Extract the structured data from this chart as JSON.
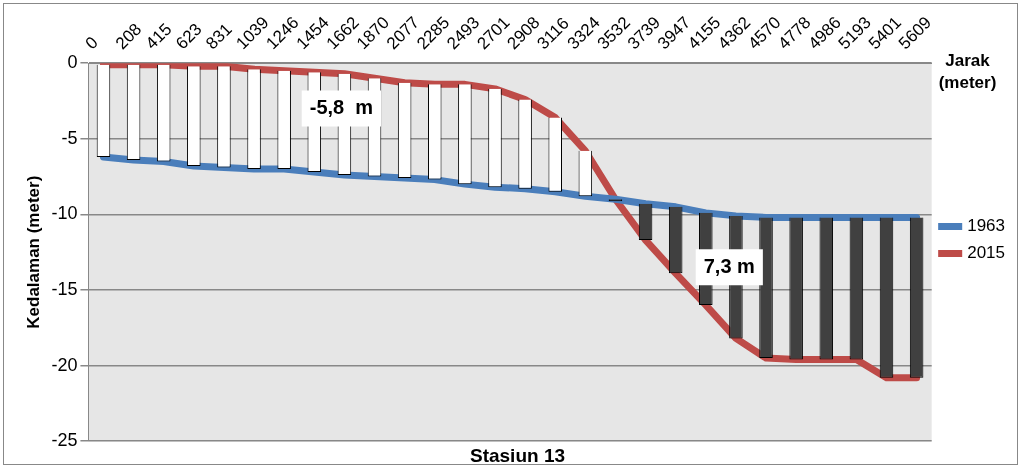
{
  "chart_data": {
    "type": "line",
    "title": "Stasiun 13",
    "xlabel": "Jarak (meter)",
    "ylabel": "Kedalaman (meter)",
    "categories": [
      "0",
      "208",
      "415",
      "623",
      "831",
      "1039",
      "1246",
      "1454",
      "1662",
      "1870",
      "2077",
      "2285",
      "2493",
      "2701",
      "2908",
      "3116",
      "3324",
      "3532",
      "3739",
      "3947",
      "4155",
      "4362",
      "4570",
      "4778",
      "4986",
      "5193",
      "5401",
      "5609"
    ],
    "series": [
      {
        "type": "bar",
        "base": [
          -6.2,
          -6.4,
          -6.5,
          -6.8,
          -6.9,
          -7.0,
          -7.0,
          -7.2,
          -7.4,
          -7.5,
          -7.6,
          -7.7,
          -8.0,
          -8.2,
          -8.3,
          -8.5,
          -8.8,
          -9.0,
          -9.3,
          -9.5,
          -9.9,
          -10.1,
          -10.2,
          -10.2,
          -10.2,
          -10.2,
          -10.2,
          -10.2
        ],
        "values": [
          6.1,
          6.3,
          6.4,
          6.6,
          6.7,
          6.6,
          6.5,
          6.6,
          6.7,
          6.5,
          6.3,
          6.3,
          6.6,
          6.5,
          5.9,
          4.9,
          3.0,
          0,
          -2.4,
          -4.4,
          -6.1,
          -8.1,
          -9.3,
          -9.4,
          -9.4,
          -9.4,
          -10.6,
          -10.6
        ],
        "colors": [
          "#ffffff",
          "#ffffff",
          "#ffffff",
          "#ffffff",
          "#ffffff",
          "#ffffff",
          "#ffffff",
          "#ffffff",
          "#ffffff",
          "#ffffff",
          "#ffffff",
          "#ffffff",
          "#ffffff",
          "#ffffff",
          "#ffffff",
          "#ffffff",
          "#ffffff",
          "#404040",
          "#404040",
          "#404040",
          "#404040",
          "#404040",
          "#404040",
          "#404040",
          "#404040",
          "#404040",
          "#404040",
          "#404040"
        ]
      },
      {
        "name": "1963",
        "color": "#4a7ebb",
        "values": [
          -6.2,
          -6.4,
          -6.5,
          -6.8,
          -6.9,
          -7.0,
          -7.0,
          -7.2,
          -7.4,
          -7.5,
          -7.6,
          -7.7,
          -8.0,
          -8.2,
          -8.3,
          -8.5,
          -8.8,
          -9.0,
          -9.3,
          -9.5,
          -9.9,
          -10.1,
          -10.2,
          -10.2,
          -10.2,
          -10.2,
          -10.2,
          -10.2
        ]
      },
      {
        "name": "2015",
        "color": "#be4b48",
        "values": [
          -0.1,
          -0.1,
          -0.1,
          -0.2,
          -0.2,
          -0.4,
          -0.5,
          -0.6,
          -0.7,
          -1.0,
          -1.3,
          -1.4,
          -1.4,
          -1.7,
          -2.4,
          -3.6,
          -5.8,
          -9.0,
          -11.7,
          -13.9,
          -16.0,
          -18.2,
          -19.5,
          -19.6,
          -19.6,
          -19.6,
          -20.8,
          -20.8
        ]
      }
    ],
    "ylim": [
      -25,
      0
    ],
    "yticks": [
      0,
      -5,
      -10,
      -15,
      -20,
      -25
    ],
    "grid": "y",
    "legend": "right",
    "marker": "none",
    "annotations": [
      "-5,8  m",
      "7,3 m"
    ]
  }
}
